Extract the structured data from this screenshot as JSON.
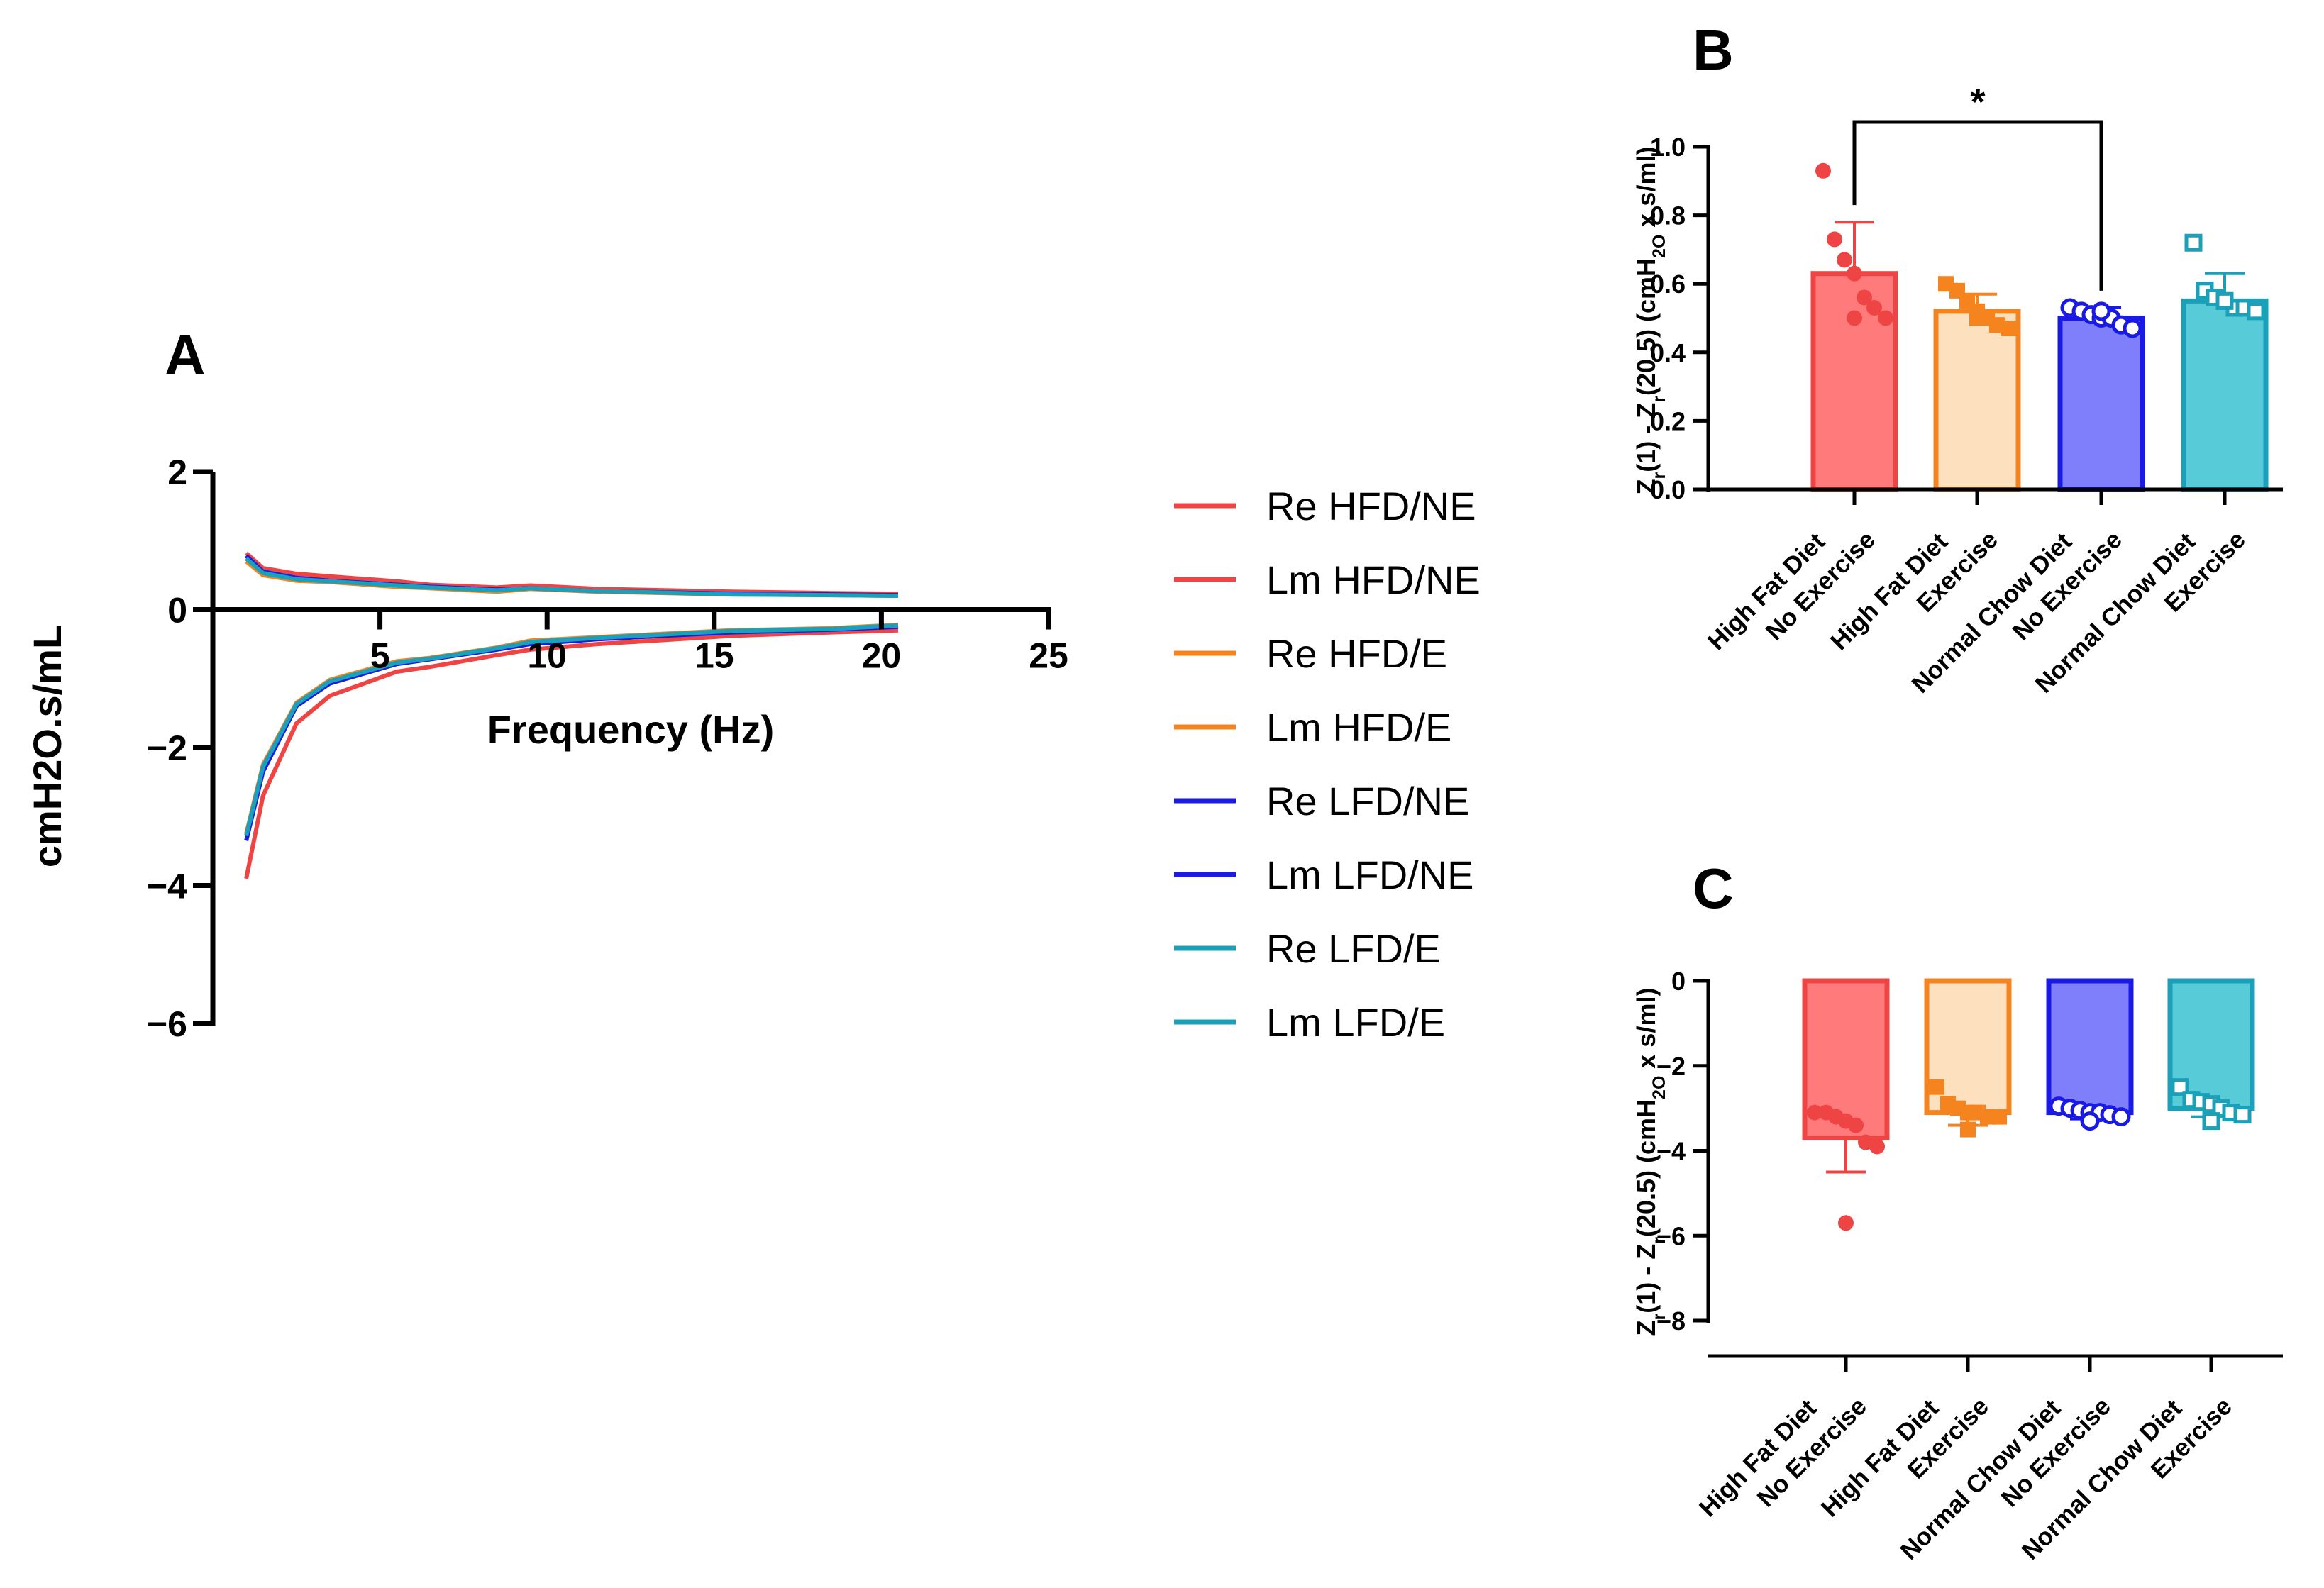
{
  "chart_data": [
    {
      "type": "line",
      "panel_label": "A",
      "xlabel": "Frequency (Hz)",
      "ylabel": "cmH2O.s/mL",
      "xlim": [
        0,
        25
      ],
      "ylim": [
        -6,
        2
      ],
      "x_ticks": [
        5,
        10,
        15,
        20,
        25
      ],
      "y_ticks": [
        -6,
        -4,
        -2,
        0,
        2
      ],
      "x_tick_labels": [
        "5",
        "10",
        "15",
        "20",
        "25"
      ],
      "y_tick_labels": [
        "−6",
        "−4",
        "−2",
        "0",
        "2"
      ],
      "x": [
        1,
        1.5,
        2.5,
        3.5,
        5.5,
        6.5,
        8.5,
        9.5,
        11.5,
        15.5,
        18.5,
        20.5
      ],
      "series": [
        {
          "name": "Re HFD/NE",
          "color": "#ef4444",
          "values": [
            0.82,
            0.6,
            0.52,
            0.48,
            0.41,
            0.36,
            0.32,
            0.35,
            0.3,
            0.26,
            0.24,
            0.23
          ]
        },
        {
          "name": "Lm HFD/NE",
          "color": "#ef4444",
          "values": [
            -3.9,
            -2.7,
            -1.65,
            -1.25,
            -0.9,
            -0.83,
            -0.66,
            -0.58,
            -0.5,
            -0.38,
            -0.33,
            -0.3
          ]
        },
        {
          "name": "Re HFD/E",
          "color": "#f5841f",
          "values": [
            0.7,
            0.5,
            0.42,
            0.4,
            0.33,
            0.31,
            0.26,
            0.3,
            0.26,
            0.22,
            0.21,
            0.2
          ]
        },
        {
          "name": "Lm HFD/E",
          "color": "#f5841f",
          "values": [
            -3.25,
            -2.25,
            -1.35,
            -1.02,
            -0.75,
            -0.7,
            -0.55,
            -0.45,
            -0.4,
            -0.3,
            -0.27,
            -0.22
          ]
        },
        {
          "name": "Re LFD/NE",
          "color": "#1a1ae6",
          "values": [
            0.78,
            0.55,
            0.46,
            0.42,
            0.36,
            0.33,
            0.29,
            0.31,
            0.27,
            0.23,
            0.22,
            0.21
          ]
        },
        {
          "name": "Lm LFD/NE",
          "color": "#1a1ae6",
          "values": [
            -3.35,
            -2.35,
            -1.4,
            -1.07,
            -0.79,
            -0.72,
            -0.58,
            -0.5,
            -0.43,
            -0.33,
            -0.29,
            -0.25
          ]
        },
        {
          "name": "Re LFD/E",
          "color": "#1aa0b8",
          "values": [
            0.74,
            0.53,
            0.44,
            0.41,
            0.35,
            0.32,
            0.28,
            0.31,
            0.27,
            0.22,
            0.21,
            0.2
          ]
        },
        {
          "name": "Lm LFD/E",
          "color": "#1aa0b8",
          "values": [
            -3.28,
            -2.28,
            -1.37,
            -1.04,
            -0.77,
            -0.71,
            -0.56,
            -0.47,
            -0.41,
            -0.31,
            -0.28,
            -0.23
          ]
        }
      ]
    },
    {
      "type": "bar",
      "panel_label": "B",
      "ylabel": "Z_r(1) - Z_r(20.5) (cmH_2O x s/ml)",
      "ylim": [
        0,
        1.0
      ],
      "y_ticks": [
        0.0,
        0.2,
        0.4,
        0.6,
        0.8,
        1.0
      ],
      "y_tick_labels": [
        "0.0",
        "0.2",
        "0.4",
        "0.6",
        "0.8",
        "1.0"
      ],
      "categories": [
        [
          "High Fat Diet",
          "No Exercise"
        ],
        [
          "High Fat Diet",
          "Exercise"
        ],
        [
          "Normal Chow Diet",
          "No Exercise"
        ],
        [
          "Normal Chow Diet",
          "Exercise"
        ]
      ],
      "values": [
        0.63,
        0.52,
        0.5,
        0.55
      ],
      "errors": [
        0.15,
        0.05,
        0.03,
        0.08
      ],
      "points": [
        [
          0.93,
          0.73,
          0.67,
          0.63,
          0.56,
          0.53,
          0.5,
          0.5
        ],
        [
          0.6,
          0.58,
          0.55,
          0.52,
          0.5,
          0.48,
          0.47,
          0.5
        ],
        [
          0.53,
          0.52,
          0.51,
          0.5,
          0.5,
          0.48,
          0.47,
          0.52
        ],
        [
          0.72,
          0.58,
          0.56,
          0.55,
          0.53,
          0.53,
          0.52,
          0.55
        ]
      ],
      "significance": {
        "from": 0,
        "to": 2,
        "label": "*"
      }
    },
    {
      "type": "bar",
      "panel_label": "C",
      "ylabel": "Z_r(1) - Z_r(20.5) (cmH_2O x s/ml)",
      "ylim": [
        -8,
        0
      ],
      "y_ticks": [
        0,
        -2,
        -4,
        -6,
        -8
      ],
      "y_tick_labels": [
        "0",
        "−2",
        "−4",
        "−6",
        "−8"
      ],
      "categories": [
        [
          "High Fat Diet",
          "No Exercise"
        ],
        [
          "High Fat Diet",
          "Exercise"
        ],
        [
          "Normal Chow Diet",
          "No Exercise"
        ],
        [
          "Normal Chow Diet",
          "Exercise"
        ]
      ],
      "values": [
        -3.7,
        -3.1,
        -3.1,
        -3.0
      ],
      "errors": [
        0.8,
        0.3,
        0.15,
        0.2
      ],
      "points": [
        [
          -3.1,
          -3.1,
          -3.2,
          -3.3,
          -3.4,
          -3.8,
          -3.9,
          -5.7
        ],
        [
          -2.5,
          -2.9,
          -3.0,
          -3.1,
          -3.1,
          -3.2,
          -3.2,
          -3.5
        ],
        [
          -2.95,
          -3.0,
          -3.05,
          -3.1,
          -3.1,
          -3.15,
          -3.2,
          -3.3
        ],
        [
          -2.5,
          -2.8,
          -2.85,
          -2.9,
          -3.0,
          -3.1,
          -3.15,
          -3.3
        ]
      ]
    }
  ],
  "colors": {
    "red": "#ef4444",
    "orange": "#f5841f",
    "blue": "#1a1ae6",
    "teal": "#1aa0b8",
    "bar_fills": [
      "#ff7b7b",
      "#fde0bd",
      "#7f7ffb",
      "#57cbd8"
    ],
    "bar_strokes": [
      "#ef4444",
      "#f5841f",
      "#1a1ae6",
      "#1aa0b8"
    ]
  }
}
